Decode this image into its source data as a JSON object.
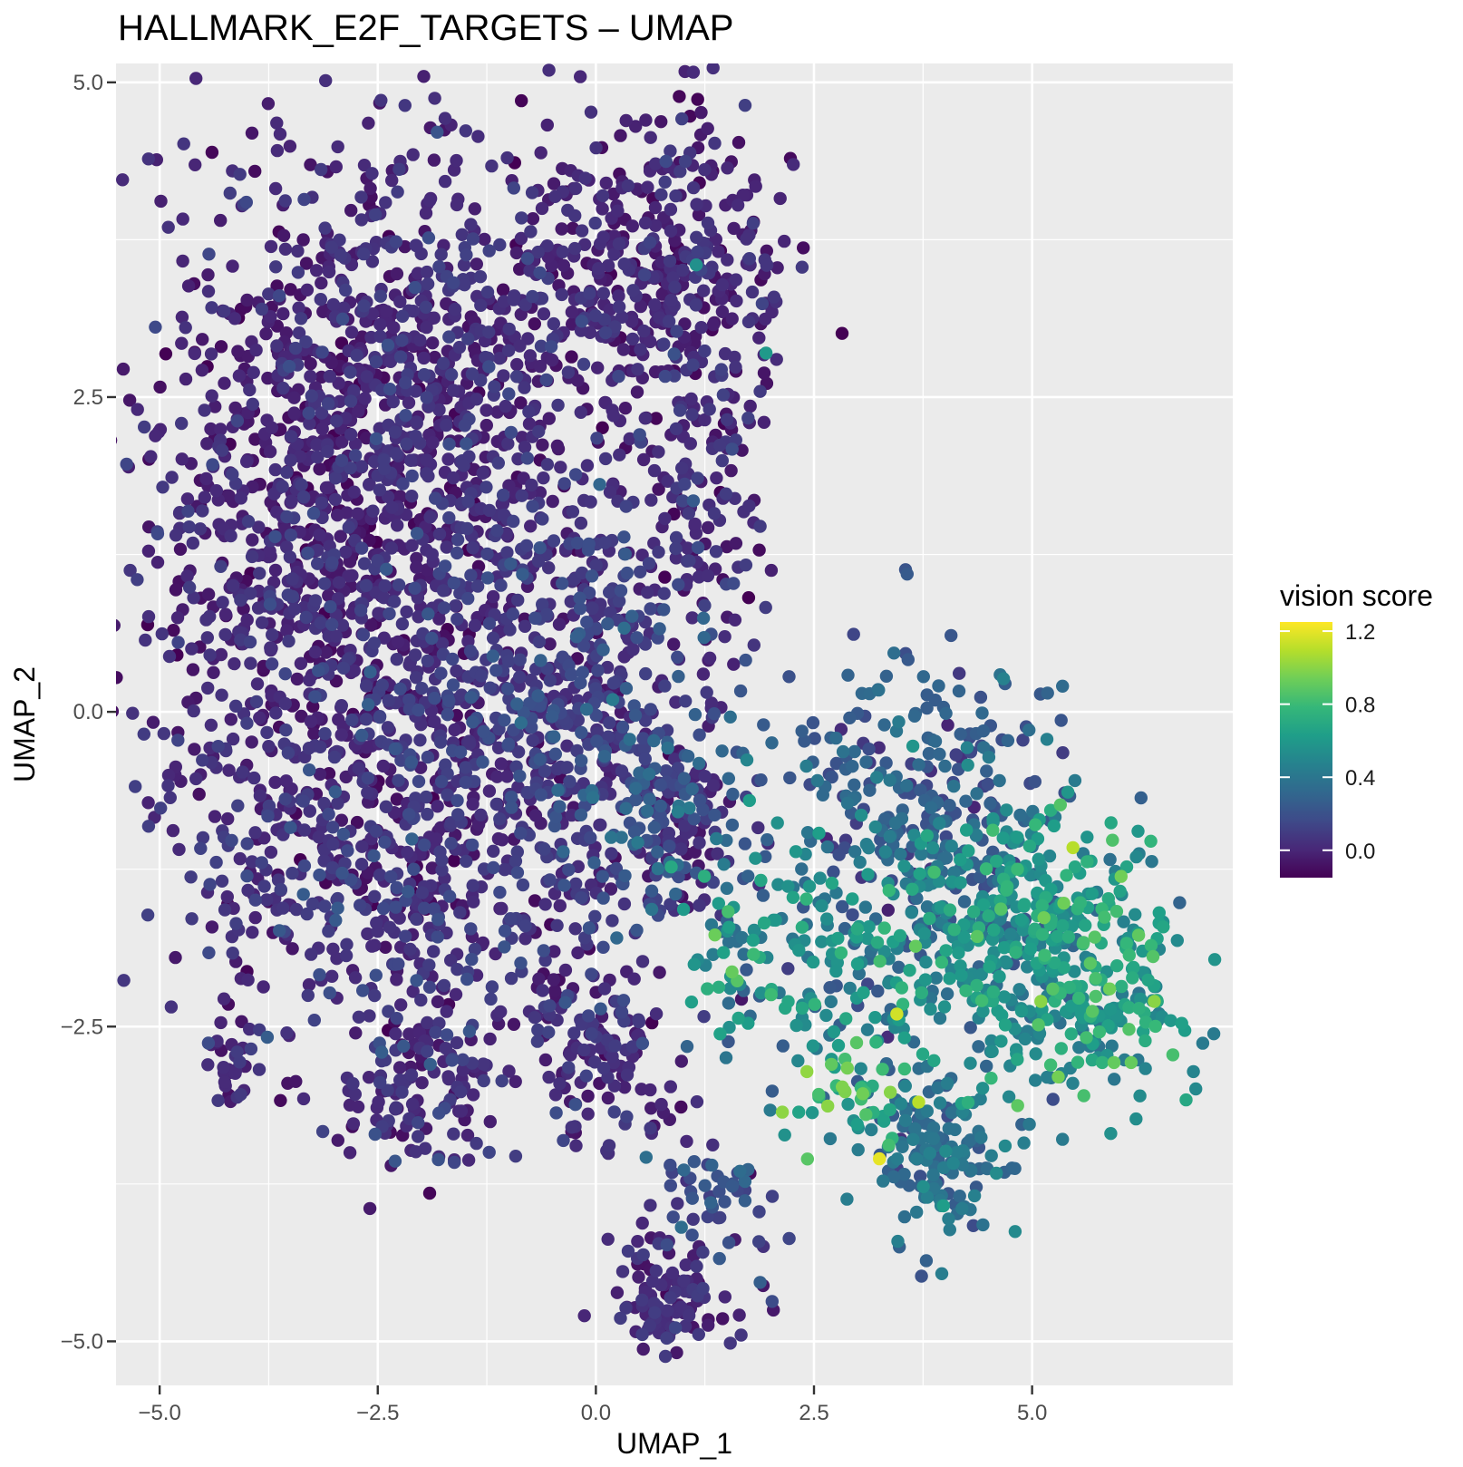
{
  "chart_data": {
    "type": "scatter",
    "title": "HALLMARK_E2F_TARGETS – UMAP",
    "xlabel": "UMAP_1",
    "ylabel": "UMAP_2",
    "xlim": [
      -5.5,
      7.3
    ],
    "ylim": [
      -5.35,
      5.15
    ],
    "x_ticks": [
      -5.0,
      -2.5,
      0.0,
      2.5,
      5.0
    ],
    "x_tick_labels": [
      "−5.0",
      "−2.5",
      "0.0",
      "2.5",
      "5.0"
    ],
    "y_ticks": [
      5.0,
      2.5,
      0.0,
      -2.5,
      -5.0
    ],
    "y_tick_labels": [
      "5.0",
      "2.5",
      "0.0",
      "−2.5",
      "−5.0"
    ],
    "grid": true,
    "panel_background": "#ebebeb",
    "grid_color": "#ffffff",
    "color_scale": {
      "name": "viridis",
      "min": -0.15,
      "max": 1.25,
      "stops": [
        "#440154",
        "#482878",
        "#3e4a89",
        "#31688e",
        "#26828e",
        "#1f9e89",
        "#35b779",
        "#6ece58",
        "#b5de2b",
        "#fde725"
      ]
    },
    "legend": {
      "title": "vision score",
      "position": "right",
      "ticks": [
        1.2,
        0.8,
        0.4,
        0.0
      ],
      "tick_labels": [
        "1.2",
        "0.8",
        "0.4",
        "0.0"
      ]
    },
    "clusters": [
      {
        "cx": -3.1,
        "cy": 1.6,
        "sx": 1.05,
        "sy": 1.55,
        "n": 1150,
        "score": 0.0,
        "score_sd": 0.07
      },
      {
        "cx": -1.6,
        "cy": 2.7,
        "sx": 0.9,
        "sy": 1.0,
        "n": 420,
        "score": 0.02,
        "score_sd": 0.07
      },
      {
        "cx": -2.6,
        "cy": -1.2,
        "sx": 1.2,
        "sy": 0.8,
        "n": 380,
        "score": 0.05,
        "score_sd": 0.08
      },
      {
        "cx": -1.3,
        "cy": -0.2,
        "sx": 0.9,
        "sy": 1.1,
        "n": 500,
        "score": 0.06,
        "score_sd": 0.08
      },
      {
        "cx": -2.0,
        "cy": -3.0,
        "sx": 0.45,
        "sy": 0.35,
        "n": 120,
        "score": 0.05,
        "score_sd": 0.08
      },
      {
        "cx": 0.0,
        "cy": -2.7,
        "sx": 0.45,
        "sy": 0.35,
        "n": 140,
        "score": 0.03,
        "score_sd": 0.07
      },
      {
        "cx": 0.0,
        "cy": 3.5,
        "sx": 0.5,
        "sy": 0.5,
        "n": 150,
        "score": 0.0,
        "score_sd": 0.06
      },
      {
        "cx": 1.1,
        "cy": 3.5,
        "sx": 0.55,
        "sy": 0.65,
        "n": 260,
        "score": 0.0,
        "score_sd": 0.07
      },
      {
        "cx": 1.1,
        "cy": 1.6,
        "sx": 0.5,
        "sy": 0.7,
        "n": 160,
        "score": 0.02,
        "score_sd": 0.07
      },
      {
        "cx": -0.2,
        "cy": 0.4,
        "sx": 0.5,
        "sy": 0.6,
        "n": 200,
        "score": 0.1,
        "score_sd": 0.08
      },
      {
        "cx": 0.8,
        "cy": -0.8,
        "sx": 0.7,
        "sy": 0.6,
        "n": 200,
        "score": 0.2,
        "score_sd": 0.12
      },
      {
        "cx": 1.0,
        "cy": -1.0,
        "sx": 0.3,
        "sy": 0.3,
        "n": 70,
        "score": 0.0,
        "score_sd": 0.06
      },
      {
        "cx": -4.2,
        "cy": -2.8,
        "sx": 0.15,
        "sy": 0.15,
        "n": 30,
        "score": 0.02,
        "score_sd": 0.06
      },
      {
        "cx": 0.8,
        "cy": -4.6,
        "sx": 0.35,
        "sy": 0.25,
        "n": 110,
        "score": 0.0,
        "score_sd": 0.06
      },
      {
        "cx": 1.3,
        "cy": -3.9,
        "sx": 0.35,
        "sy": 0.3,
        "n": 50,
        "score": 0.15,
        "score_sd": 0.1
      },
      {
        "cx": 2.3,
        "cy": -1.9,
        "sx": 0.7,
        "sy": 0.5,
        "n": 150,
        "score": 0.5,
        "score_sd": 0.18
      },
      {
        "cx": 3.7,
        "cy": -0.7,
        "sx": 0.7,
        "sy": 0.6,
        "n": 250,
        "score": 0.25,
        "score_sd": 0.1
      },
      {
        "cx": 4.4,
        "cy": -1.7,
        "sx": 0.7,
        "sy": 0.55,
        "n": 300,
        "score": 0.5,
        "score_sd": 0.14
      },
      {
        "cx": 5.6,
        "cy": -2.1,
        "sx": 0.6,
        "sy": 0.5,
        "n": 280,
        "score": 0.6,
        "score_sd": 0.15
      },
      {
        "cx": 3.9,
        "cy": -3.5,
        "sx": 0.4,
        "sy": 0.35,
        "n": 150,
        "score": 0.35,
        "score_sd": 0.1
      },
      {
        "cx": 3.0,
        "cy": -3.1,
        "sx": 0.3,
        "sy": 0.3,
        "n": 40,
        "score": 0.75,
        "score_sd": 0.15
      }
    ],
    "notable_points": [
      {
        "x": 3.25,
        "y": -3.55,
        "score": 1.2
      },
      {
        "x": 3.45,
        "y": -2.4,
        "score": 1.15
      },
      {
        "x": 3.7,
        "y": -3.1,
        "score": 1.1
      },
      {
        "x": 2.7,
        "y": -2.8,
        "score": 0.9
      },
      {
        "x": 5.3,
        "y": -2.9,
        "score": 0.95
      },
      {
        "x": 5.1,
        "y": -2.3,
        "score": 1.0
      },
      {
        "x": 6.4,
        "y": -2.3,
        "score": 1.0
      },
      {
        "x": 1.15,
        "y": 3.55,
        "score": 0.55
      },
      {
        "x": 1.95,
        "y": 2.85,
        "score": 0.6
      }
    ]
  }
}
